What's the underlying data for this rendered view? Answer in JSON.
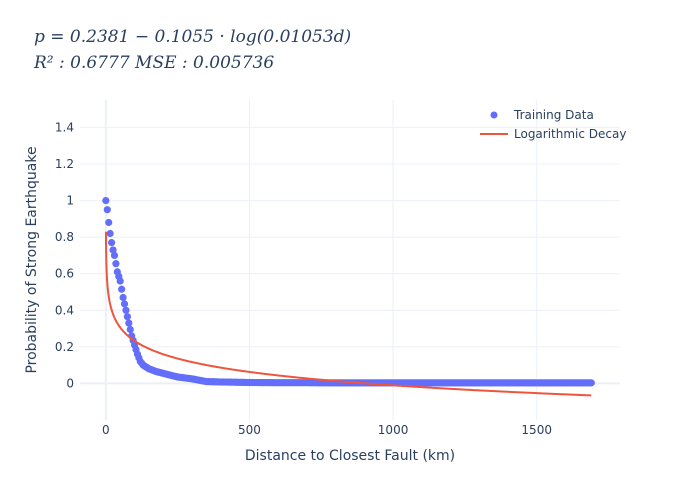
{
  "chart_data": {
    "type": "scatter",
    "title_lines": [
      "p = 0.2381 − 0.1055 · log(0.01053d)",
      "R² : 0.6777   MSE : 0.005736"
    ],
    "xlabel": "Distance to Closest Fault (km)",
    "ylabel": "Probability of Strong Earthquake",
    "xlim": [
      -90,
      1790
    ],
    "ylim": [
      -0.2,
      1.55
    ],
    "xticks": [
      0,
      500,
      1000,
      1500
    ],
    "yticks": [
      0,
      0.2,
      0.4,
      0.6,
      0.8,
      1,
      1.2,
      1.4
    ],
    "grid": true,
    "legend_position": "top-right",
    "series": [
      {
        "name": "Training Data",
        "mode": "markers",
        "color": "#636efa",
        "x": [
          0,
          5,
          10,
          15,
          20,
          25,
          30,
          40,
          50,
          60,
          70,
          80,
          90,
          100,
          110,
          120,
          130,
          140,
          150,
          175,
          200,
          250,
          300,
          350,
          400,
          500,
          600,
          700,
          800,
          900,
          1000,
          1100,
          1200,
          1300,
          1400,
          1500,
          1600,
          1690
        ],
        "y": [
          1.0,
          0.95,
          0.88,
          0.82,
          0.77,
          0.73,
          0.7,
          0.61,
          0.56,
          0.47,
          0.4,
          0.33,
          0.26,
          0.21,
          0.16,
          0.12,
          0.1,
          0.09,
          0.08,
          0.065,
          0.055,
          0.035,
          0.025,
          0.01,
          0.008,
          0.005,
          0.004,
          0.004,
          0.003,
          0.003,
          0.003,
          0.003,
          0.003,
          0.003,
          0.003,
          0.003,
          0.003,
          0.003
        ]
      },
      {
        "name": "Logarithmic Decay",
        "mode": "lines",
        "color": "#ef553b",
        "model": {
          "a": 0.2381,
          "b": -0.1055,
          "c": 0.01053
        },
        "x_range": [
          0.35,
          1690
        ]
      }
    ]
  }
}
